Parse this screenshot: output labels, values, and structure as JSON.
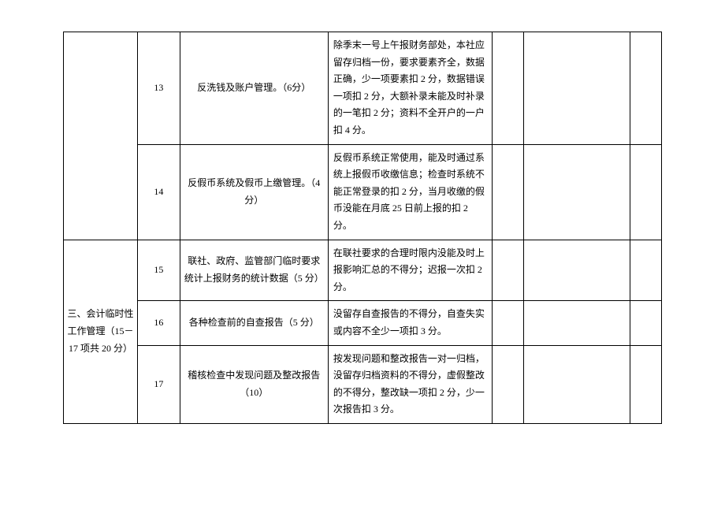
{
  "section_header": "三、会计临时性工作管理（15－17 项共 20 分）",
  "rows": [
    {
      "num": "13",
      "item": "反洗钱及账户管理。（6分）",
      "criteria": "除季末一号上午报财务部处，本社应留存归档一份，要求要素齐全，数据正确，少一项要素扣 2 分，数据错误一项扣 2 分，大额补录未能及时补录的一笔扣 2 分；资料不全开户的一户扣 4 分。"
    },
    {
      "num": "14",
      "item": "反假币系统及假币上缴管理。（4 分）",
      "criteria": "反假币系统正常使用，能及时通过系统上报假币收缴信息；检查时系统不能正常登录的扣 2 分，当月收缴的假币没能在月底 25 日前上报的扣 2 分。"
    },
    {
      "num": "15",
      "item": "联社、政府、监管部门临时要求统计上报财务的统计数据（5 分）",
      "criteria": "在联社要求的合理时限内没能及时上报影响汇总的不得分；迟报一次扣 2 分。"
    },
    {
      "num": "16",
      "item": "各种检查前的自查报告（5 分）",
      "criteria": "没留存自查报告的不得分，自查失实或内容不全少一项扣 3 分。"
    },
    {
      "num": "17",
      "item": "稽核检查中发现问题及整改报告（10）",
      "criteria": "按发现问题和整改报告一对一归档，没留存归档资料的不得分，虚假整改的不得分，整改缺一项扣 2 分，少一次报告扣 3 分。"
    }
  ]
}
